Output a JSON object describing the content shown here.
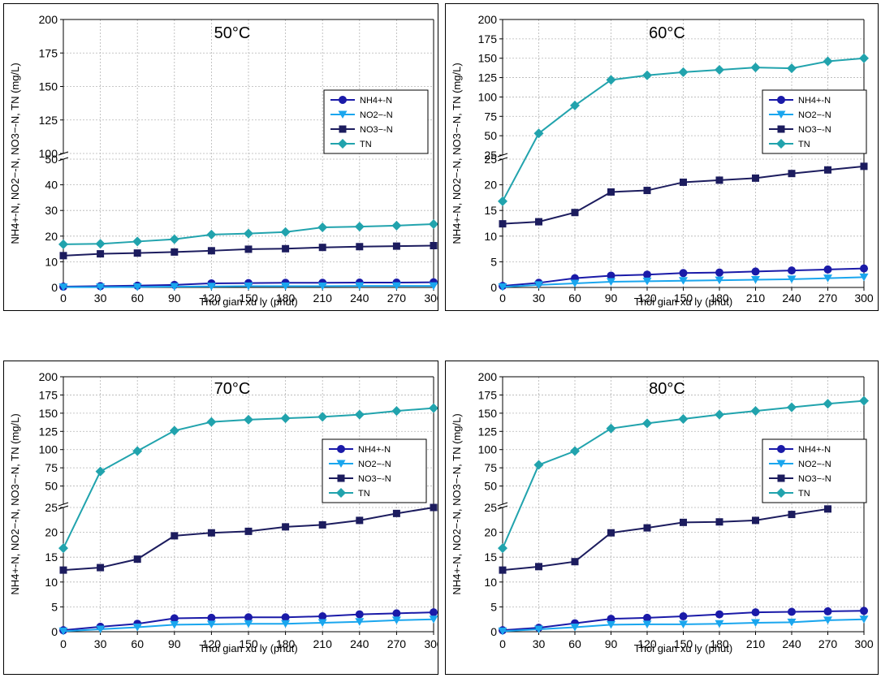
{
  "colors": {
    "nh4": "#1a1aa8",
    "no2": "#1aa6ee",
    "no3": "#1c1c5e",
    "tn": "#21a3ad"
  },
  "legend_labels": [
    "NH4+-N",
    "NO2−-N",
    "NO3−-N",
    "TN"
  ],
  "chart_data": [
    {
      "type": "line",
      "title": "50°C",
      "xlabel": "Thoi gian xu ly (phut)",
      "ylabel": "NH4+-N, NO2−-N, NO3−-N, TN (mg/L)",
      "x": [
        0,
        30,
        60,
        90,
        120,
        150,
        180,
        210,
        240,
        270,
        300
      ],
      "x_ticks": [
        "0",
        "30",
        "60",
        "90",
        "120",
        "150",
        "180",
        "210",
        "240",
        "270",
        "300"
      ],
      "y_upper": {
        "ylim": [
          100,
          200
        ],
        "ticks": [
          "100",
          "125",
          "150",
          "175",
          "200"
        ]
      },
      "y_lower": {
        "ylim": [
          0,
          50
        ],
        "ticks": [
          "0",
          "10",
          "20",
          "30",
          "40",
          "50"
        ]
      },
      "legend_position": "center-right",
      "series": [
        {
          "name": "NH4+-N",
          "values": [
            0.3,
            0.5,
            0.7,
            1.0,
            1.6,
            1.7,
            1.8,
            1.8,
            1.9,
            1.9,
            2.0
          ]
        },
        {
          "name": "NO2−-N",
          "values": [
            0.1,
            0.1,
            0.2,
            0.3,
            0.4,
            0.5,
            0.5,
            0.5,
            0.6,
            0.6,
            0.6
          ]
        },
        {
          "name": "NO3−-N",
          "values": [
            12.4,
            13.1,
            13.4,
            13.8,
            14.3,
            14.9,
            15.1,
            15.6,
            15.9,
            16.1,
            16.3
          ]
        },
        {
          "name": "TN",
          "values": [
            16.8,
            17.0,
            17.9,
            18.8,
            20.6,
            21.0,
            21.6,
            23.4,
            23.7,
            24.1,
            24.7
          ]
        }
      ]
    },
    {
      "type": "line",
      "title": "60°C",
      "xlabel": "Thoi gian xu ly (phut)",
      "ylabel": "NH4+-N, NO2−-N, NO3−-N, TN (mg/L)",
      "x": [
        0,
        30,
        60,
        90,
        120,
        150,
        180,
        210,
        240,
        270,
        300
      ],
      "x_ticks": [
        "0",
        "30",
        "60",
        "90",
        "120",
        "150",
        "180",
        "210",
        "240",
        "270",
        "300"
      ],
      "y_upper": {
        "ylim": [
          25,
          200
        ],
        "ticks": [
          "25",
          "50",
          "75",
          "100",
          "125",
          "150",
          "175",
          "200"
        ]
      },
      "y_lower": {
        "ylim": [
          0,
          25
        ],
        "ticks": [
          "0",
          "5",
          "10",
          "15",
          "20",
          "25"
        ]
      },
      "legend_position": "center-right",
      "series": [
        {
          "name": "NH4+-N",
          "values": [
            0.3,
            0.9,
            1.8,
            2.3,
            2.5,
            2.8,
            2.9,
            3.1,
            3.3,
            3.5,
            3.7
          ]
        },
        {
          "name": "NO2−-N",
          "values": [
            0.1,
            0.5,
            0.8,
            1.1,
            1.2,
            1.3,
            1.4,
            1.5,
            1.6,
            1.8,
            2.0
          ]
        },
        {
          "name": "NO3−-N",
          "values": [
            12.4,
            12.8,
            14.6,
            18.6,
            18.9,
            20.5,
            20.9,
            21.3,
            22.2,
            22.9,
            23.6
          ]
        },
        {
          "name": "TN",
          "values": [
            16.8,
            53,
            89,
            122,
            128,
            132,
            135,
            138,
            137,
            146,
            150
          ]
        }
      ]
    },
    {
      "type": "line",
      "title": "70°C",
      "xlabel": "Thoi gian xu ly (phut)",
      "ylabel": "NH4+-N, NO2−-N, NO3−-N, TN (mg/L)",
      "x": [
        0,
        30,
        60,
        90,
        120,
        150,
        180,
        210,
        240,
        270,
        300
      ],
      "x_ticks": [
        "0",
        "30",
        "60",
        "90",
        "120",
        "150",
        "180",
        "210",
        "240",
        "270",
        "300"
      ],
      "y_upper": {
        "ylim": [
          25,
          200
        ],
        "ticks": [
          "50",
          "75",
          "100",
          "125",
          "150",
          "175",
          "200"
        ]
      },
      "y_lower": {
        "ylim": [
          0,
          25
        ],
        "ticks": [
          "0",
          "5",
          "10",
          "15",
          "20",
          "25"
        ]
      },
      "legend_position": "center-right",
      "series": [
        {
          "name": "NH4+-N",
          "values": [
            0.3,
            1.0,
            1.6,
            2.7,
            2.8,
            2.9,
            2.9,
            3.1,
            3.5,
            3.7,
            3.9
          ]
        },
        {
          "name": "NO2−-N",
          "values": [
            0.1,
            0.5,
            0.9,
            1.4,
            1.5,
            1.6,
            1.6,
            1.8,
            2.0,
            2.3,
            2.5
          ]
        },
        {
          "name": "NO3−-N",
          "values": [
            12.4,
            12.9,
            14.6,
            19.3,
            19.9,
            20.2,
            21.1,
            21.5,
            22.4,
            23.8,
            25.0
          ]
        },
        {
          "name": "TN",
          "values": [
            16.8,
            70,
            98,
            126,
            138,
            141,
            143,
            145,
            148,
            153,
            157
          ]
        }
      ]
    },
    {
      "type": "line",
      "title": "80°C",
      "xlabel": "Thoi gian xu ly (phut)",
      "ylabel": "NH4+-N, NO2−-N, NO3−-N, TN (mg/L)",
      "x": [
        0,
        30,
        60,
        90,
        120,
        150,
        180,
        210,
        240,
        270,
        300
      ],
      "x_ticks": [
        "0",
        "30",
        "60",
        "90",
        "120",
        "150",
        "180",
        "210",
        "240",
        "270",
        "300"
      ],
      "y_upper": {
        "ylim": [
          25,
          200
        ],
        "ticks": [
          "50",
          "75",
          "100",
          "125",
          "150",
          "175",
          "200"
        ]
      },
      "y_lower": {
        "ylim": [
          0,
          25
        ],
        "ticks": [
          "0",
          "5",
          "10",
          "15",
          "20",
          "25"
        ]
      },
      "legend_position": "center-right",
      "series": [
        {
          "name": "NH4+-N",
          "values": [
            0.3,
            0.8,
            1.7,
            2.6,
            2.8,
            3.1,
            3.5,
            3.9,
            4.0,
            4.1,
            4.2
          ]
        },
        {
          "name": "NO2−-N",
          "values": [
            0.1,
            0.5,
            0.9,
            1.4,
            1.5,
            1.5,
            1.6,
            1.8,
            1.9,
            2.3,
            2.5
          ]
        },
        {
          "name": "NO3−-N",
          "values": [
            12.4,
            13.1,
            14.1,
            19.9,
            20.9,
            22.0,
            22.1,
            22.4,
            23.6,
            24.7,
            null
          ]
        },
        {
          "name": "TN",
          "values": [
            16.8,
            79,
            98,
            129,
            136,
            142,
            148,
            153,
            158,
            163,
            167
          ]
        }
      ]
    }
  ]
}
